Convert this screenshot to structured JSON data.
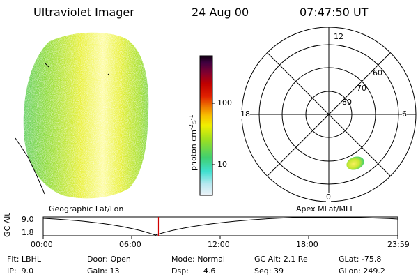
{
  "header": {
    "instrument": "Ultraviolet Imager",
    "date": "24 Aug 00",
    "time": "07:47:50 UT"
  },
  "colorbar": {
    "unit_label": "photon cm",
    "unit_exp1": "-2",
    "unit_mid": "s",
    "unit_exp2": "-1",
    "ticks": [
      "100",
      "10"
    ],
    "stops": [
      "#e8f0f8",
      "#b8e8f0",
      "#40e0d8",
      "#40d070",
      "#a0e020",
      "#f0f000",
      "#f8c000",
      "#f08000",
      "#e02000",
      "#c00000",
      "#800030",
      "#400040",
      "#100010"
    ]
  },
  "polar": {
    "lat_labels": [
      "80",
      "70",
      "60"
    ],
    "mlt_labels": {
      "top": "12",
      "bottom": "0",
      "left": "18",
      "right": "6"
    }
  },
  "panel_labels": {
    "left": "Geographic Lat/Lon",
    "right": "Apex MLat/MLT"
  },
  "altitude_plot": {
    "ylabel": "GC Alt",
    "yticks": [
      "9.0",
      "1.8"
    ],
    "xticks": [
      "00:00",
      "06:00",
      "12:00",
      "18:00",
      "23:59"
    ],
    "marker_time": "07:47:50",
    "marker_color": "#d00000"
  },
  "info": {
    "row1": [
      {
        "label": "Flt:",
        "value": "LBHL"
      },
      {
        "label": "Door:",
        "value": "Open"
      },
      {
        "label": "Mode:",
        "value": "Normal"
      },
      {
        "label": "GC Alt:",
        "value": "2.1 Re"
      },
      {
        "label": "GLat:",
        "value": "-75.8"
      }
    ],
    "row2": [
      {
        "label": "IP:",
        "value": "9.0"
      },
      {
        "label": "Gain:",
        "value": "13"
      },
      {
        "label": "Dsp:",
        "value": "4.6"
      },
      {
        "label": "Seq:",
        "value": "39"
      },
      {
        "label": "GLon:",
        "value": "249.2"
      }
    ]
  }
}
